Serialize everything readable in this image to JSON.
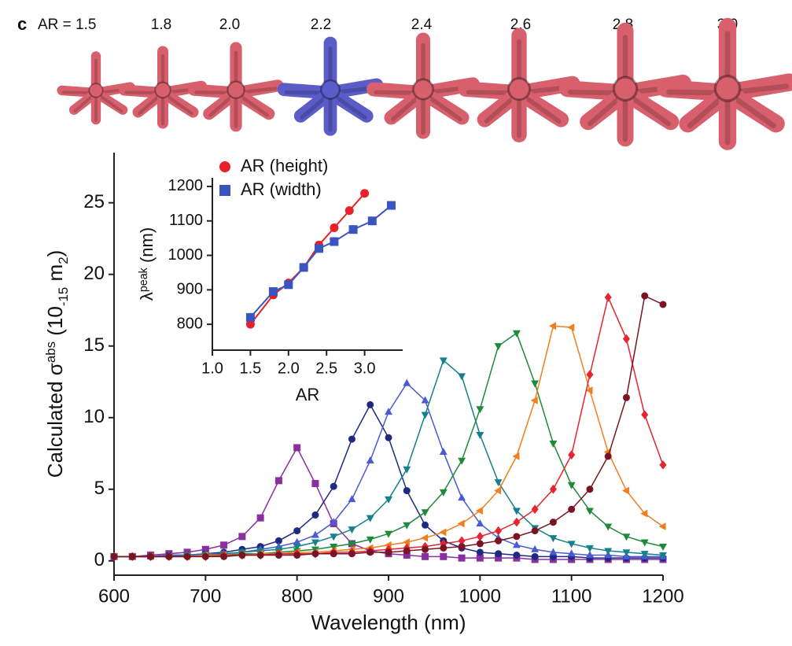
{
  "header": {
    "panel_label": "c",
    "ar_labels": [
      "AR = 1.5",
      "1.8",
      "2.0",
      "2.2",
      "2.4",
      "2.6",
      "2.8",
      "3.0"
    ],
    "star_color": "#d8606c",
    "highlight_color": "#5b5cc8",
    "highlight_index": 3
  },
  "chart_data": [
    {
      "type": "line",
      "xlabel": "Wavelength (nm)",
      "ylabel": [
        "Calculated σ",
        "abs",
        " (10",
        "-15",
        " m",
        "2",
        ")"
      ],
      "xlim": [
        600,
        1200
      ],
      "ylim": [
        -1,
        28.5
      ],
      "xticks": [
        600,
        700,
        800,
        900,
        1000,
        1100,
        1200
      ],
      "yticks": [
        0,
        5,
        10,
        15,
        20,
        25
      ],
      "x": [
        600,
        620,
        640,
        660,
        680,
        700,
        720,
        740,
        760,
        780,
        800,
        820,
        840,
        860,
        880,
        900,
        920,
        940,
        960,
        980,
        1000,
        1020,
        1040,
        1060,
        1080,
        1100,
        1120,
        1140,
        1160,
        1180,
        1200
      ],
      "series": [
        {
          "color": "#8a2fa0",
          "marker": "square",
          "values": [
            0.3,
            0.3,
            0.4,
            0.5,
            0.6,
            0.8,
            1.1,
            1.7,
            3.0,
            5.6,
            7.9,
            5.4,
            2.6,
            1.2,
            0.7,
            0.5,
            0.4,
            0.3,
            0.3,
            0.2,
            0.2,
            0.2,
            0.2,
            0.1,
            0.1,
            0.1,
            0.1,
            0.1,
            0.1,
            0.1,
            0.1
          ]
        },
        {
          "color": "#1c2a80",
          "marker": "circle",
          "values": [
            0.3,
            0.3,
            0.3,
            0.4,
            0.4,
            0.5,
            0.6,
            0.8,
            1.0,
            1.4,
            2.1,
            3.2,
            5.2,
            8.5,
            10.9,
            8.6,
            4.9,
            2.5,
            1.4,
            0.9,
            0.6,
            0.5,
            0.4,
            0.3,
            0.3,
            0.3,
            0.2,
            0.2,
            0.2,
            0.2,
            0.2
          ]
        },
        {
          "color": "#4a5bd0",
          "marker": "triangle-up",
          "values": [
            0.3,
            0.3,
            0.3,
            0.4,
            0.4,
            0.5,
            0.5,
            0.6,
            0.8,
            1.0,
            1.3,
            1.8,
            2.7,
            4.3,
            7.0,
            10.4,
            12.4,
            11.2,
            7.6,
            4.4,
            2.6,
            1.6,
            1.1,
            0.8,
            0.6,
            0.5,
            0.4,
            0.4,
            0.3,
            0.3,
            0.3
          ]
        },
        {
          "color": "#16808c",
          "marker": "triangle-down",
          "values": [
            0.3,
            0.3,
            0.3,
            0.3,
            0.4,
            0.4,
            0.5,
            0.6,
            0.7,
            0.8,
            1.0,
            1.3,
            1.7,
            2.2,
            3.0,
            4.3,
            6.4,
            10.2,
            14.0,
            12.9,
            8.8,
            5.5,
            3.5,
            2.3,
            1.6,
            1.2,
            0.9,
            0.7,
            0.6,
            0.5,
            0.4
          ]
        },
        {
          "color": "#1f8a3a",
          "marker": "triangle-down",
          "values": [
            0.3,
            0.3,
            0.3,
            0.3,
            0.3,
            0.4,
            0.4,
            0.5,
            0.5,
            0.6,
            0.7,
            0.8,
            1.0,
            1.2,
            1.5,
            1.9,
            2.5,
            3.4,
            4.8,
            7.0,
            10.6,
            15.0,
            15.9,
            12.4,
            8.2,
            5.3,
            3.5,
            2.4,
            1.7,
            1.3,
            1.0
          ]
        },
        {
          "color": "#f07f1e",
          "marker": "triangle-left",
          "values": [
            0.3,
            0.3,
            0.3,
            0.3,
            0.3,
            0.4,
            0.4,
            0.4,
            0.5,
            0.5,
            0.6,
            0.6,
            0.7,
            0.8,
            0.9,
            1.1,
            1.3,
            1.6,
            2.0,
            2.6,
            3.5,
            4.9,
            7.3,
            11.2,
            16.4,
            16.3,
            11.9,
            7.6,
            4.9,
            3.3,
            2.4
          ]
        },
        {
          "color": "#e52530",
          "marker": "diamond",
          "values": [
            0.3,
            0.3,
            0.3,
            0.3,
            0.3,
            0.3,
            0.4,
            0.4,
            0.4,
            0.5,
            0.5,
            0.5,
            0.6,
            0.6,
            0.7,
            0.8,
            0.9,
            1.0,
            1.2,
            1.4,
            1.7,
            2.1,
            2.7,
            3.6,
            5.0,
            7.4,
            13.0,
            18.4,
            15.5,
            10.2,
            6.7
          ]
        },
        {
          "color": "#7a1424",
          "marker": "circle",
          "values": [
            0.3,
            0.3,
            0.3,
            0.3,
            0.3,
            0.3,
            0.3,
            0.4,
            0.4,
            0.4,
            0.4,
            0.5,
            0.5,
            0.5,
            0.6,
            0.6,
            0.7,
            0.8,
            0.9,
            1.0,
            1.2,
            1.4,
            1.7,
            2.1,
            2.7,
            3.6,
            5.0,
            7.3,
            11.4,
            18.5,
            17.9
          ]
        }
      ]
    },
    {
      "type": "line",
      "xlabel": "AR",
      "ylabel": [
        "λ",
        "peak",
        " (nm)"
      ],
      "xlim": [
        1.0,
        3.5
      ],
      "ylim": [
        725,
        1225
      ],
      "xticks": [
        {
          "value": 1,
          "label": "1.0"
        },
        1.5,
        {
          "value": 2,
          "label": "2.0"
        },
        2.5,
        {
          "value": 3,
          "label": "3.0"
        }
      ],
      "yticks": [
        800,
        900,
        1000,
        1100,
        1200
      ],
      "series": [
        {
          "name": "AR (height)",
          "color": "#e8202a",
          "marker": "circle",
          "x": [
            1.5,
            1.8,
            2.0,
            2.2,
            2.4,
            2.6,
            2.8,
            3.0
          ],
          "values": [
            800,
            885,
            920,
            965,
            1030,
            1080,
            1130,
            1180
          ]
        },
        {
          "name": "AR (width)",
          "color": "#3a55c0",
          "marker": "square",
          "x": [
            1.5,
            1.8,
            2.0,
            2.2,
            2.4,
            2.6,
            2.85,
            3.1,
            3.35
          ],
          "values": [
            820,
            895,
            915,
            965,
            1020,
            1040,
            1075,
            1100,
            1145
          ]
        }
      ]
    }
  ]
}
